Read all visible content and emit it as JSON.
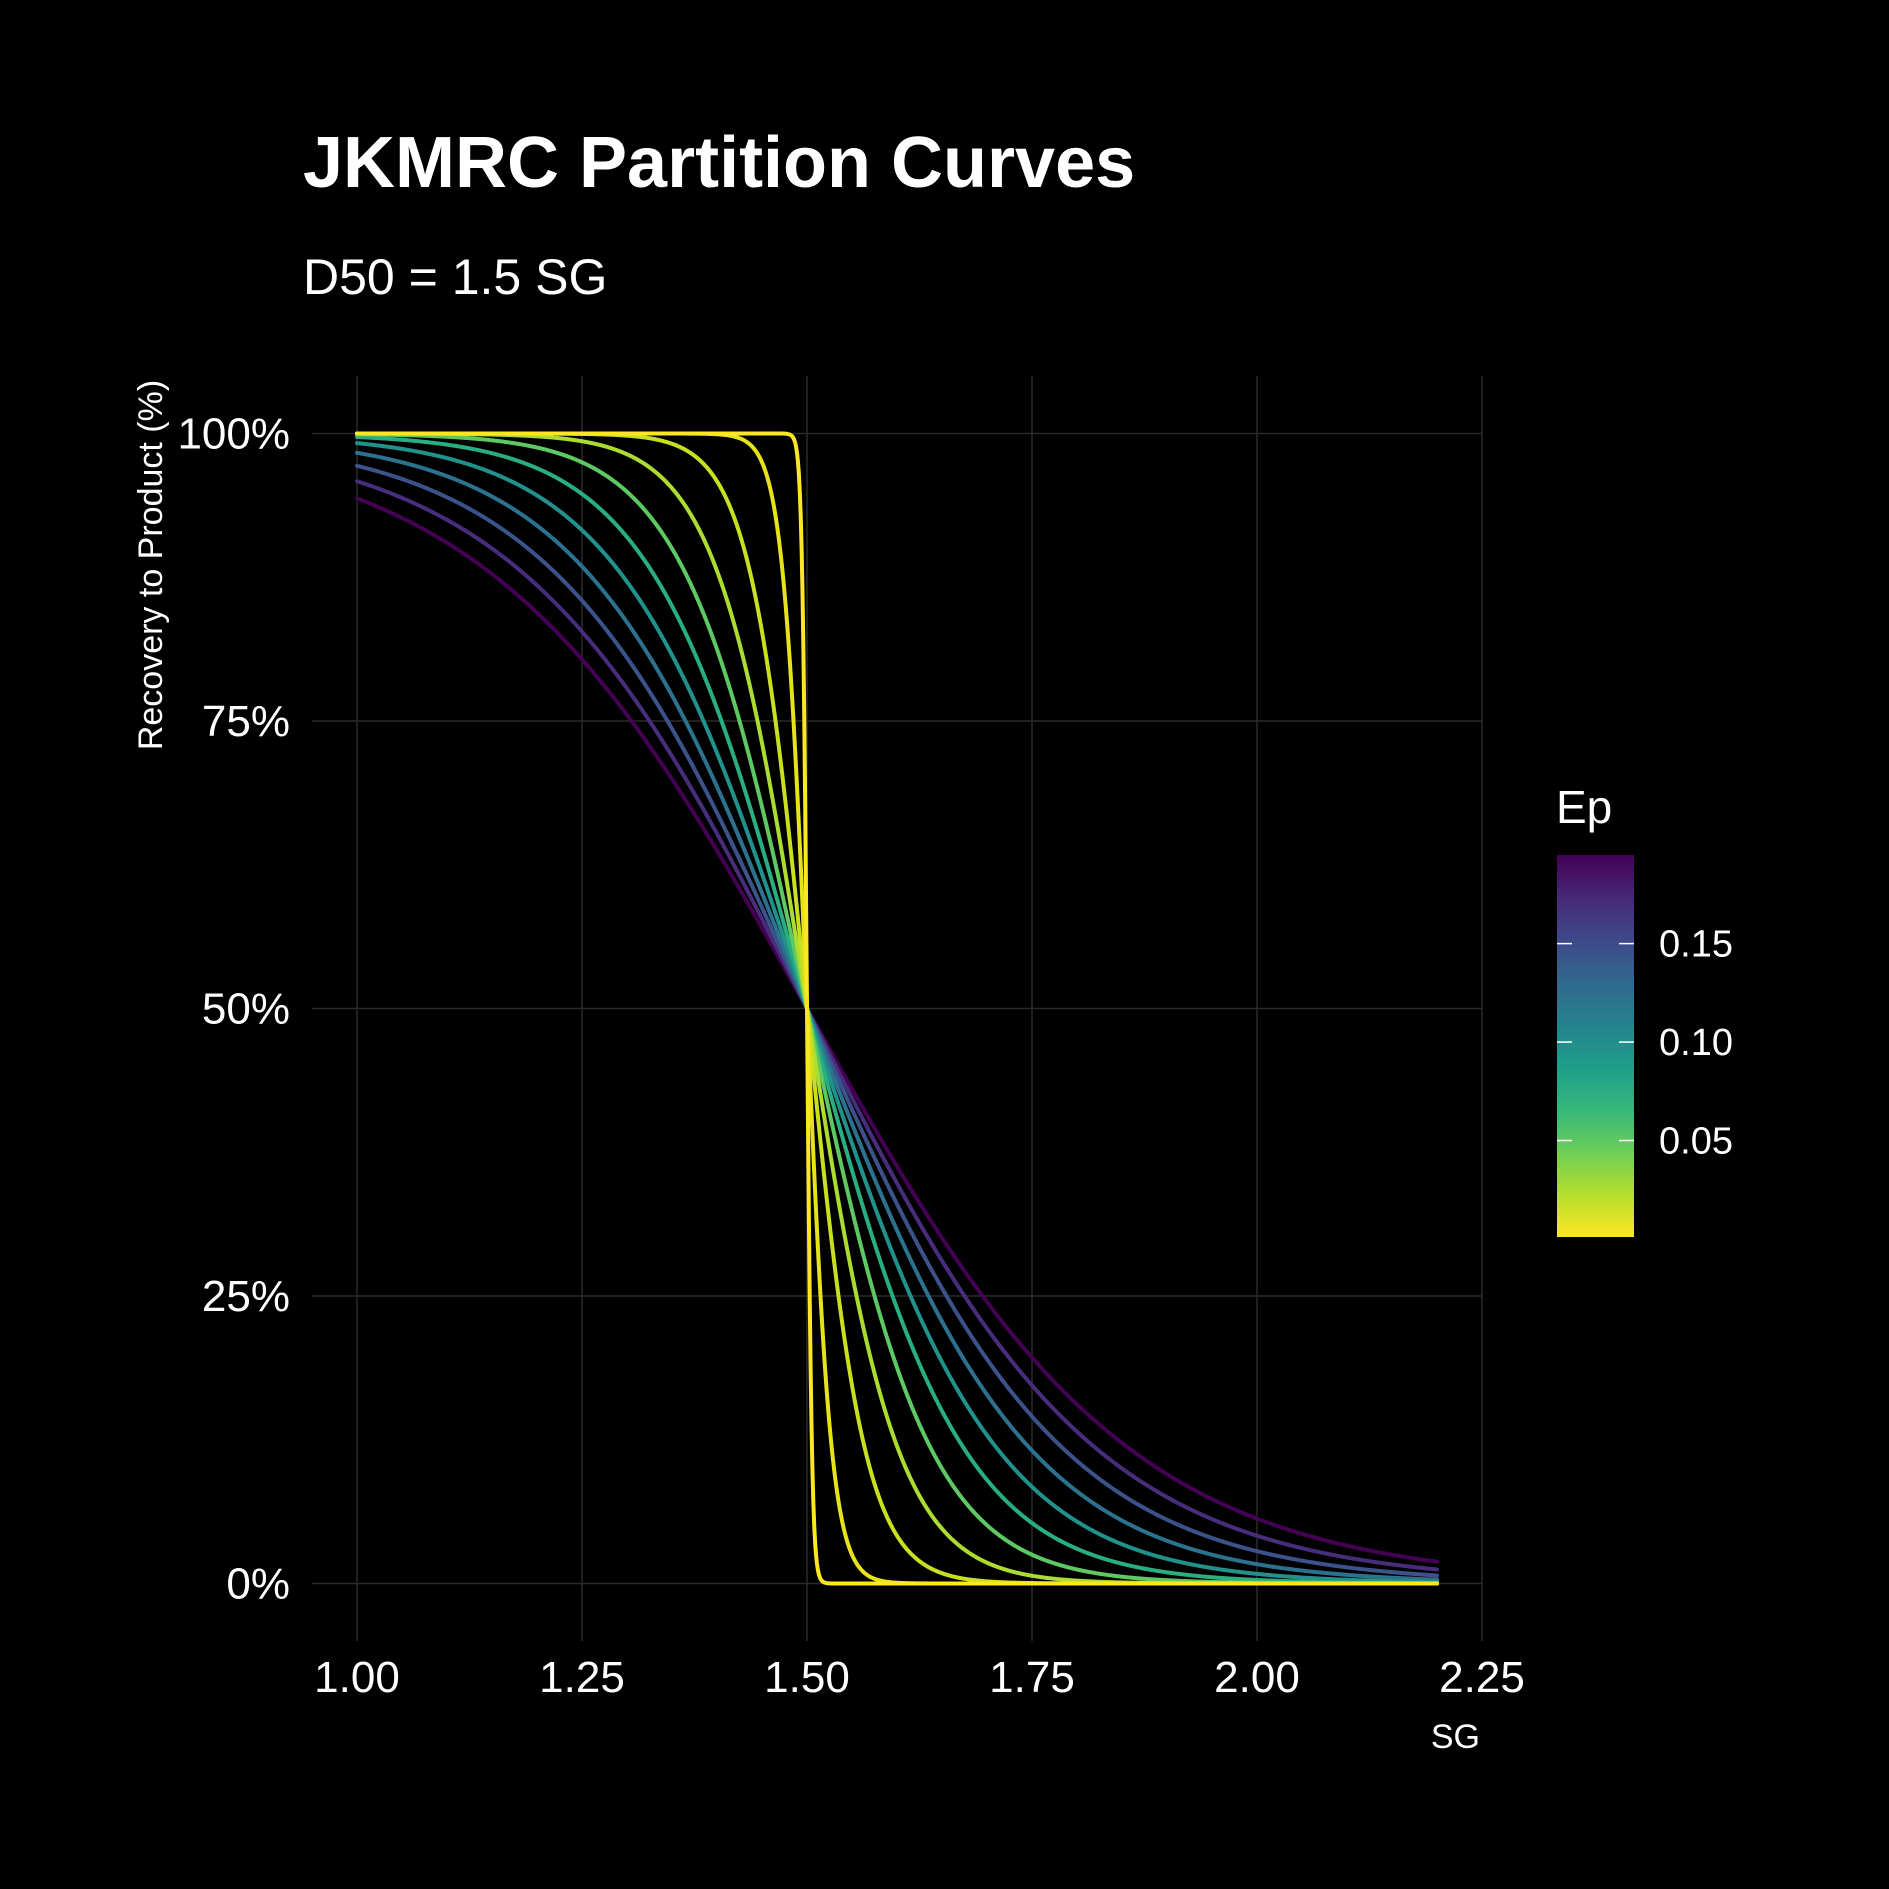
{
  "chart_data": {
    "type": "line",
    "title": "JKMRC Partition Curves",
    "subtitle": "D50 = 1.5 SG",
    "xlabel": "SG",
    "ylabel": "Recovery to Product (%)",
    "xlim": [
      0.95,
      2.25
    ],
    "ylim": [
      -0.05,
      1.05
    ],
    "x_ticks": [
      1.0,
      1.25,
      1.5,
      1.75,
      2.0,
      2.25
    ],
    "x_tick_labels": [
      "1.00",
      "1.25",
      "1.50",
      "1.75",
      "2.00",
      "2.25"
    ],
    "y_ticks": [
      0,
      0.25,
      0.5,
      0.75,
      1.0
    ],
    "y_tick_labels": [
      "0%",
      "25%",
      "50%",
      "75%",
      "100%"
    ],
    "grid": true,
    "d50": 1.5,
    "x_range": [
      1.0,
      2.2
    ],
    "model": "recovery = 1 / (1 + exp(1.0986 * (SG - D50) / Ep))",
    "series": [
      {
        "name": "Ep = 0.195",
        "ep": 0.195,
        "color": "#440154"
      },
      {
        "name": "Ep = 0.175",
        "ep": 0.175,
        "color": "#472d7b"
      },
      {
        "name": "Ep = 0.155",
        "ep": 0.155,
        "color": "#3b528b"
      },
      {
        "name": "Ep = 0.135",
        "ep": 0.135,
        "color": "#2c728e"
      },
      {
        "name": "Ep = 0.115",
        "ep": 0.115,
        "color": "#21918c"
      },
      {
        "name": "Ep = 0.095",
        "ep": 0.095,
        "color": "#28ae80"
      },
      {
        "name": "Ep = 0.075",
        "ep": 0.075,
        "color": "#5ec962"
      },
      {
        "name": "Ep = 0.055",
        "ep": 0.055,
        "color": "#addc30"
      },
      {
        "name": "Ep = 0.035",
        "ep": 0.035,
        "color": "#c8e020"
      },
      {
        "name": "Ep = 0.015",
        "ep": 0.015,
        "color": "#e6e419"
      },
      {
        "name": "Ep = 0.003",
        "ep": 0.003,
        "color": "#fde725"
      }
    ],
    "legend": {
      "title": "Ep",
      "placement": "right",
      "range": [
        0.001,
        0.195
      ],
      "ticks": [
        0.15,
        0.1,
        0.05
      ],
      "tick_labels": [
        "0.15",
        "0.10",
        "0.05"
      ],
      "colors": [
        "#fde725",
        "#b5de2b",
        "#6ece58",
        "#35b779",
        "#1f9e89",
        "#26828e",
        "#31688e",
        "#3e4989",
        "#482878",
        "#440154"
      ]
    }
  },
  "colors": {
    "background": "#000000",
    "text": "#ffffff",
    "grid": "#2a2a2a"
  }
}
